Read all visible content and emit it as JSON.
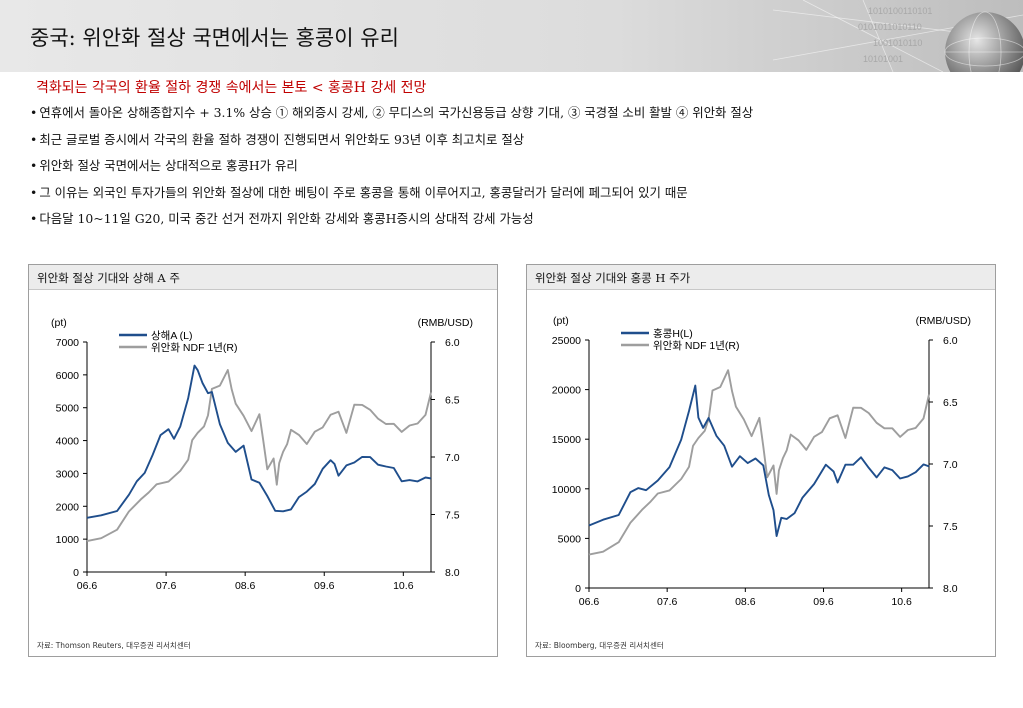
{
  "page": {
    "title": "중국: 위안화 절상 국면에서는 홍콩이 유리",
    "subtitle": "격화되는 각국의 환율 절하 경쟁 속에서는 본토 < 홍콩H 강세 전망",
    "bullet_marker": "•",
    "bullets": [
      "연휴에서 돌아온 상해종합지수 + 3.1% 상승 ① 해외증시 강세, ② 무디스의 국가신용등급 상향 기대, ③ 국경절 소비 활발 ④ 위안화 절상",
      "최근 글로벌 증시에서 각국의 환율 절하 경쟁이 진행되면서 위안화도 93년 이후 최고치로 절상",
      "위안화 절상 국면에서는 상대적으로 홍콩H가 유리",
      "그 이유는 외국인 투자가들의 위안화 절상에 대한 베팅이 주로 홍콩을 통해 이루어지고, 홍콩달러가 달러에 페그되어 있기 때문",
      "다음달 10~11일 G20, 미국 중간 선거 전까지 위안화 강세와 홍콩H증시의 상대적 강세 가능성"
    ]
  },
  "chart_data": [
    {
      "type": "line",
      "panel_title": "위안화 절상 기대와 상해 A 주",
      "source": "자료: Thomson Reuters, 대우증권 리서치센터",
      "left_unit": "(pt)",
      "right_unit": "(RMB/USD)",
      "x_tick_labels": [
        "06.6",
        "07.6",
        "08.6",
        "09.6",
        "10.6"
      ],
      "x_range": [
        2006.42,
        2010.77
      ],
      "x_ticks": [
        2006.42,
        2007.42,
        2008.42,
        2009.42,
        2010.42
      ],
      "y_left": {
        "range": [
          0,
          7000
        ],
        "ticks": [
          0,
          1000,
          2000,
          3000,
          4000,
          5000,
          6000,
          7000
        ]
      },
      "y_right": {
        "range": [
          6.0,
          8.0
        ],
        "ticks": [
          6.0,
          6.5,
          7.0,
          7.5,
          8.0
        ],
        "labels": [
          "6.0",
          "6.5",
          "7.0",
          "7.5",
          "8.0"
        ],
        "inverted": true
      },
      "series": [
        {
          "name": "상해A (L)",
          "axis": "left",
          "color": "#1f4e8c",
          "x": [
            2006.42,
            2006.6,
            2006.8,
            2006.95,
            2007.05,
            2007.15,
            2007.25,
            2007.35,
            2007.45,
            2007.52,
            2007.6,
            2007.7,
            2007.78,
            2007.82,
            2007.88,
            2007.95,
            2008.0,
            2008.1,
            2008.2,
            2008.3,
            2008.4,
            2008.5,
            2008.6,
            2008.7,
            2008.8,
            2008.9,
            2009.0,
            2009.1,
            2009.2,
            2009.3,
            2009.4,
            2009.5,
            2009.55,
            2009.6,
            2009.7,
            2009.8,
            2009.9,
            2010.0,
            2010.1,
            2010.2,
            2010.3,
            2010.4,
            2010.5,
            2010.6,
            2010.7,
            2010.77
          ],
          "values": [
            1650,
            1700,
            1900,
            2300,
            2800,
            3000,
            3550,
            4200,
            4300,
            4100,
            4400,
            5300,
            6300,
            6100,
            5800,
            5400,
            5500,
            4500,
            3900,
            3700,
            3800,
            2850,
            2700,
            2300,
            1900,
            1800,
            1950,
            2250,
            2450,
            2700,
            3100,
            3450,
            3250,
            2950,
            3250,
            3300,
            3550,
            3450,
            3300,
            3200,
            3150,
            2800,
            2750,
            2800,
            2850,
            2850
          ]
        },
        {
          "name": "위안화 NDF 1년(R)",
          "axis": "right",
          "color": "#9e9e9e",
          "x": [
            2006.42,
            2006.6,
            2006.8,
            2006.95,
            2007.1,
            2007.2,
            2007.3,
            2007.45,
            2007.6,
            2007.7,
            2007.75,
            2007.82,
            2007.9,
            2007.95,
            2008.0,
            2008.1,
            2008.2,
            2008.25,
            2008.3,
            2008.4,
            2008.5,
            2008.6,
            2008.65,
            2008.7,
            2008.78,
            2008.82,
            2008.85,
            2008.9,
            2008.95,
            2009.0,
            2009.1,
            2009.2,
            2009.3,
            2009.4,
            2009.5,
            2009.6,
            2009.7,
            2009.8,
            2009.9,
            2010.0,
            2010.1,
            2010.2,
            2010.3,
            2010.4,
            2010.5,
            2010.6,
            2010.7,
            2010.77
          ],
          "values": [
            7.72,
            7.72,
            7.62,
            7.48,
            7.37,
            7.3,
            7.25,
            7.2,
            7.13,
            7.02,
            6.85,
            6.8,
            6.72,
            6.65,
            6.4,
            6.38,
            6.25,
            6.4,
            6.55,
            6.63,
            6.78,
            6.63,
            6.85,
            7.12,
            7.0,
            7.25,
            7.05,
            6.95,
            6.9,
            6.75,
            6.82,
            6.88,
            6.78,
            6.75,
            6.62,
            6.62,
            6.78,
            6.55,
            6.55,
            6.58,
            6.68,
            6.7,
            6.72,
            6.78,
            6.72,
            6.72,
            6.62,
            6.45
          ]
        }
      ]
    },
    {
      "type": "line",
      "panel_title": "위안화 절상 기대와 홍콩 H 주가",
      "source": "자료: Bloomberg, 대우증권 리서치센터",
      "left_unit": "(pt)",
      "right_unit": "(RMB/USD)",
      "x_tick_labels": [
        "06.6",
        "07.6",
        "08.6",
        "09.6",
        "10.6"
      ],
      "x_range": [
        2006.42,
        2010.77
      ],
      "x_ticks": [
        2006.42,
        2007.42,
        2008.42,
        2009.42,
        2010.42
      ],
      "y_left": {
        "range": [
          0,
          25000
        ],
        "ticks": [
          0,
          5000,
          10000,
          15000,
          20000,
          25000
        ]
      },
      "y_right": {
        "range": [
          6.0,
          8.0
        ],
        "ticks": [
          6.0,
          6.5,
          7.0,
          7.5,
          8.0
        ],
        "labels": [
          "6.0",
          "6.5",
          "7.0",
          "7.5",
          "8.0"
        ],
        "inverted": true
      },
      "series": [
        {
          "name": "홍콩H(L)",
          "axis": "left",
          "color": "#1f4e8c",
          "x": [
            2006.42,
            2006.6,
            2006.8,
            2006.95,
            2007.05,
            2007.15,
            2007.3,
            2007.45,
            2007.6,
            2007.7,
            2007.78,
            2007.82,
            2007.88,
            2007.95,
            2008.05,
            2008.15,
            2008.25,
            2008.35,
            2008.45,
            2008.55,
            2008.65,
            2008.72,
            2008.78,
            2008.82,
            2008.88,
            2008.95,
            2009.05,
            2009.15,
            2009.3,
            2009.45,
            2009.55,
            2009.6,
            2009.7,
            2009.8,
            2009.9,
            2010.0,
            2010.1,
            2010.2,
            2010.3,
            2010.4,
            2010.5,
            2010.6,
            2010.7,
            2010.77
          ],
          "values": [
            6300,
            6800,
            7500,
            9500,
            10200,
            9800,
            10800,
            12300,
            14800,
            18000,
            20300,
            17200,
            16200,
            17000,
            15500,
            14200,
            12300,
            13300,
            12500,
            13200,
            12200,
            9500,
            7800,
            5200,
            7200,
            6800,
            7700,
            9000,
            10500,
            12500,
            11600,
            10800,
            12300,
            12500,
            13200,
            12000,
            11300,
            12000,
            12000,
            11000,
            11200,
            11800,
            12300,
            12400
          ]
        },
        {
          "name": "위안화 NDF 1년(R)",
          "axis": "right",
          "color": "#9e9e9e",
          "x": [
            2006.42,
            2006.6,
            2006.8,
            2006.95,
            2007.1,
            2007.2,
            2007.3,
            2007.45,
            2007.6,
            2007.7,
            2007.75,
            2007.82,
            2007.9,
            2007.95,
            2008.0,
            2008.1,
            2008.2,
            2008.25,
            2008.3,
            2008.4,
            2008.5,
            2008.6,
            2008.65,
            2008.7,
            2008.78,
            2008.82,
            2008.85,
            2008.9,
            2008.95,
            2009.0,
            2009.1,
            2009.2,
            2009.3,
            2009.4,
            2009.5,
            2009.6,
            2009.7,
            2009.8,
            2009.9,
            2010.0,
            2010.1,
            2010.2,
            2010.3,
            2010.4,
            2010.5,
            2010.6,
            2010.7,
            2010.77
          ],
          "values": [
            7.72,
            7.72,
            7.62,
            7.48,
            7.37,
            7.3,
            7.25,
            7.2,
            7.13,
            7.02,
            6.85,
            6.8,
            6.72,
            6.65,
            6.4,
            6.38,
            6.25,
            6.4,
            6.55,
            6.63,
            6.78,
            6.63,
            6.85,
            7.12,
            7.0,
            7.25,
            7.05,
            6.95,
            6.9,
            6.75,
            6.82,
            6.88,
            6.78,
            6.75,
            6.62,
            6.62,
            6.78,
            6.55,
            6.55,
            6.58,
            6.68,
            6.7,
            6.72,
            6.78,
            6.72,
            6.72,
            6.62,
            6.45
          ]
        }
      ]
    }
  ]
}
